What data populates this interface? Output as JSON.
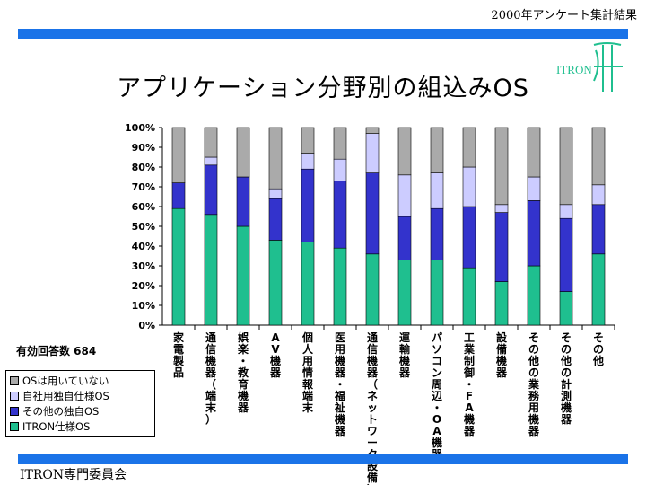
{
  "header": {
    "note": "2000年アンケート集計結果"
  },
  "title": "アプリケーション分野別の組込みOS",
  "logo": {
    "text": "ITRON"
  },
  "footer": "ITRON専門委員会",
  "respondents_label": "有効回答数 684",
  "colors": {
    "band": "#1a73e8",
    "itron": "#1fbf8f",
    "other_own": "#3333cc",
    "own_company": "#ccccff",
    "none": "#aaaaaa"
  },
  "chart_data": {
    "type": "bar",
    "stacked": true,
    "ylim": [
      0,
      100
    ],
    "y_ticks": [
      "0%",
      "10%",
      "20%",
      "30%",
      "40%",
      "50%",
      "60%",
      "70%",
      "80%",
      "90%",
      "100%"
    ],
    "legend_position": "bottom-left",
    "grid": false,
    "categories": [
      "家電製品",
      "通信機器（端末）",
      "娯楽・教育機器",
      "AV機器",
      "個人用情報端末",
      "医用機器・福祉機器",
      "通信機器（ネットワーク設備）",
      "運輸機器",
      "パソコン周辺・OA機器",
      "工業制御・FA機器",
      "設備機器",
      "その他の業務用機器",
      "その他の計測機器",
      "その他"
    ],
    "series": [
      {
        "name": "ITRON仕様OS",
        "color": "#1fbf8f",
        "values": [
          59,
          56,
          50,
          43,
          42,
          39,
          36,
          33,
          33,
          29,
          22,
          30,
          17,
          36
        ]
      },
      {
        "name": "その他の独自OS",
        "color": "#3333cc",
        "values": [
          13,
          25,
          25,
          21,
          37,
          34,
          41,
          22,
          26,
          31,
          35,
          33,
          37,
          25
        ]
      },
      {
        "name": "自社用独自仕様OS",
        "color": "#ccccff",
        "values": [
          0,
          4,
          0,
          5,
          8,
          11,
          20,
          21,
          18,
          20,
          4,
          12,
          7,
          10
        ]
      },
      {
        "name": "OSは用いていない",
        "color": "#aaaaaa",
        "values": [
          28,
          15,
          25,
          31,
          13,
          16,
          3,
          24,
          23,
          20,
          39,
          25,
          39,
          29
        ]
      }
    ]
  }
}
